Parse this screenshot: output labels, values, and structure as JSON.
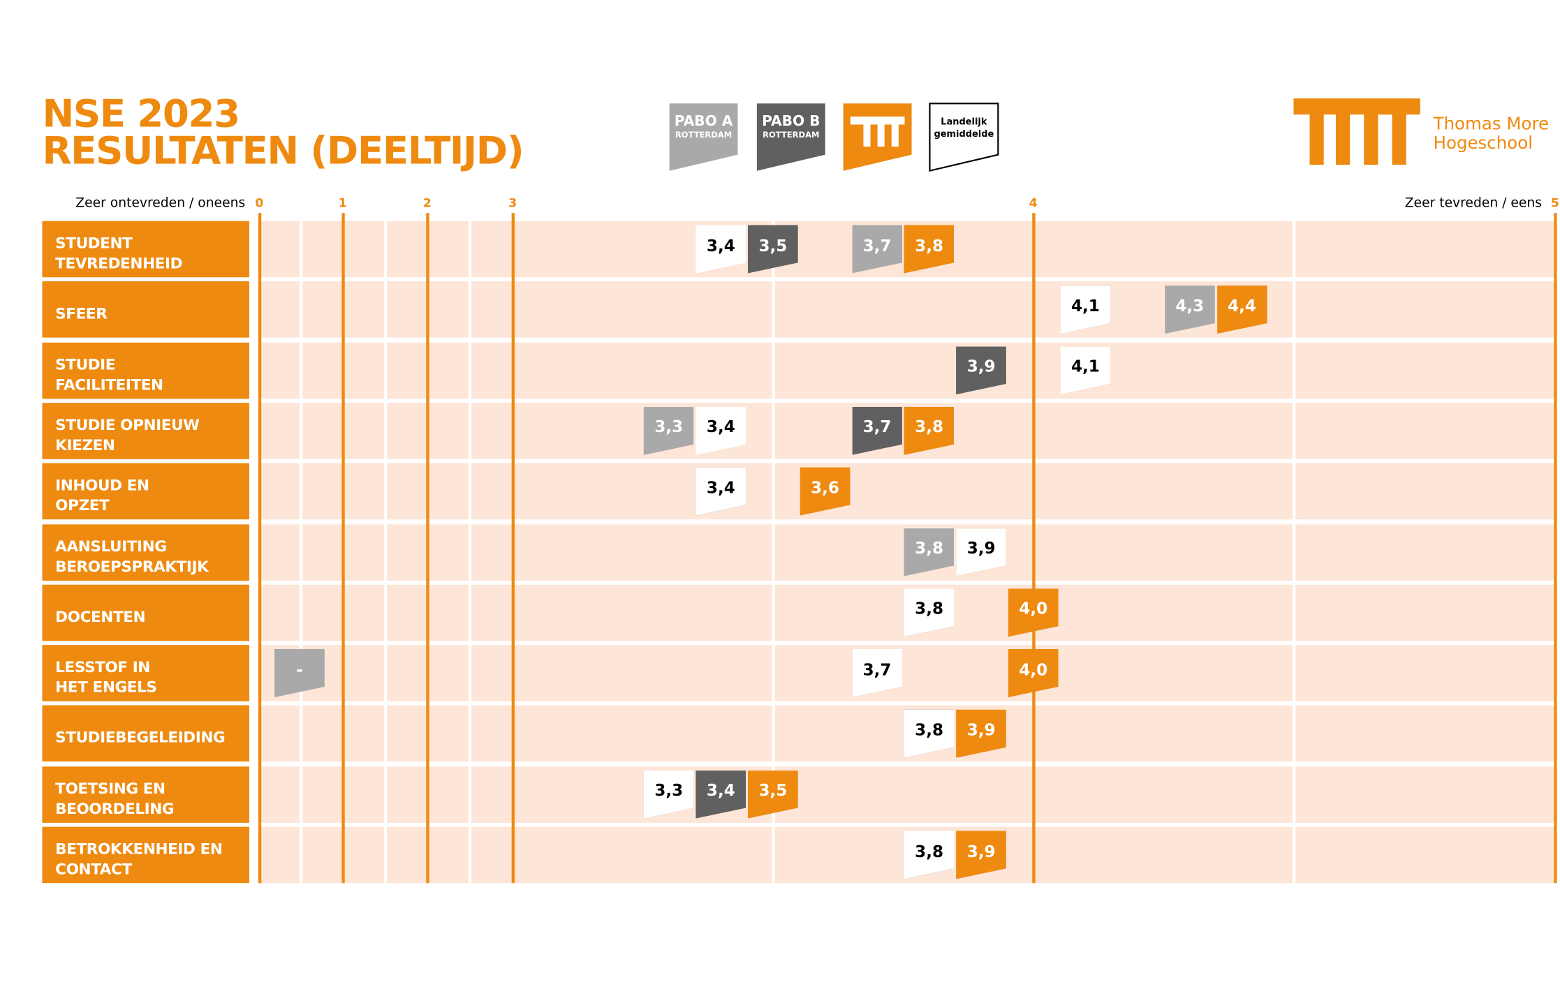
{
  "chart_data": {
    "type": "dot",
    "title": "NSE 2023\nRESULTATEN (DEELTIJD)",
    "axis_label_left": "Zeer ontevreden / oneens",
    "axis_label_right": "Zeer tevreden / eens",
    "logo_text": "Thomas More\nHogeschool",
    "categories": [
      "STUDENT\nTEVREDENHEID",
      "SFEER",
      "STUDIE\nFACILITEITEN",
      "STUDIE OPNIEUW\nKIEZEN",
      "INHOUD EN\nOPZET",
      "AANSLUITING\nBEROEPSPRAKTIJK",
      "DOCENTEN",
      "LESSTOF IN\nHET ENGELS",
      "STUDIEBEGELEIDING",
      "TOETSING EN\nBEOORDELING",
      "BETROKKENHEID EN\nCONTACT"
    ],
    "xlim": [
      0,
      5
    ],
    "xticks": [
      0,
      1,
      2,
      3,
      4,
      5
    ],
    "series": [
      {
        "name": "PABO A",
        "sublabel": "ROTTERDAM",
        "color": "#a9a9a9",
        "text_color": "#ffffff",
        "values": [
          3.7,
          4.3,
          3.9,
          3.3,
          3.4,
          3.8,
          4.0,
          null,
          3.8,
          3.3,
          3.8
        ],
        "value_labels": [
          "3,7",
          "4,3",
          "3,9",
          "3,3",
          "3,4",
          "3,8",
          "4,0",
          "-",
          "3,8",
          "3,3",
          "3,8"
        ]
      },
      {
        "name": "PABO B",
        "sublabel": "ROTTERDAM",
        "color": "#606060",
        "text_color": "#ffffff",
        "values": [
          3.5,
          4.1,
          3.9,
          3.7,
          3.4,
          3.9,
          3.8,
          3.7,
          3.8,
          3.4,
          3.8
        ],
        "value_labels": [
          "3,5",
          "4,1",
          "3,9",
          "3,7",
          "3,4",
          "3,9",
          "3,8",
          "3,7",
          "3,8",
          "3,4",
          "3,8"
        ]
      },
      {
        "color": "#ee8a10",
        "text_color": "#ffffff",
        "values": [
          3.8,
          4.4,
          4.1,
          3.8,
          3.6,
          3.9,
          4.0,
          4.0,
          3.9,
          3.5,
          3.9
        ],
        "value_labels": [
          "3,8",
          "4,4",
          "4,1",
          "3,8",
          "3,6",
          "3,9",
          "4,0",
          "4,0",
          "3,9",
          "3,5",
          "3,9"
        ]
      },
      {
        "name": "Landelijk\ngemiddelde",
        "color": "#ffffff",
        "text_color": "#000000",
        "values": [
          3.4,
          4.1,
          4.1,
          3.4,
          3.4,
          3.9,
          3.8,
          3.7,
          3.8,
          3.3,
          3.8
        ],
        "value_labels": [
          "3,4",
          "4,1",
          "4,1",
          "3,4",
          "3,4",
          "3,9",
          "3,8",
          "3,7",
          "3,8",
          "3,3",
          "3,8"
        ]
      }
    ]
  }
}
